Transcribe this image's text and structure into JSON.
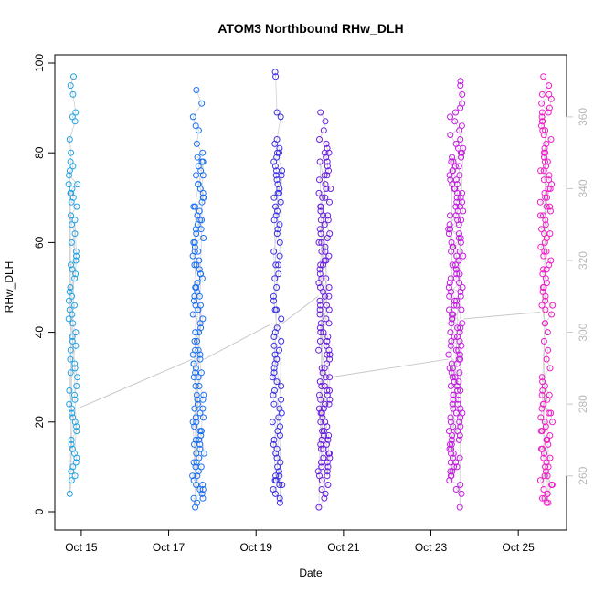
{
  "chart_data": {
    "type": "scatter",
    "title": "ATOM3 Northbound RHw_DLH",
    "xlabel": "Date",
    "ylabel": "RHw_DLH",
    "ylim": [
      0,
      100
    ],
    "xlim": [
      "2014-10-14T12:00",
      "2014-10-26T00:00"
    ],
    "x_ticks": [
      {
        "value": "2014-10-15T00:00",
        "label": "Oct 15"
      },
      {
        "value": "2014-10-17T00:00",
        "label": "Oct 17"
      },
      {
        "value": "2014-10-19T00:00",
        "label": "Oct 19"
      },
      {
        "value": "2014-10-21T00:00",
        "label": "Oct 21"
      },
      {
        "value": "2014-10-23T00:00",
        "label": "Oct 23"
      },
      {
        "value": "2014-10-25T00:00",
        "label": "Oct 25"
      }
    ],
    "y_ticks": [
      0,
      20,
      40,
      60,
      80,
      100
    ],
    "y2_ticks": [
      260,
      280,
      300,
      320,
      340,
      360
    ],
    "y2_range": [
      250,
      375
    ],
    "grid": false,
    "marker": "open-circle",
    "flights": [
      {
        "color": "#1fa3e6",
        "start": "2014-10-14T17:00",
        "end": "2014-10-14T22:00",
        "values": [
          97,
          95,
          93,
          89,
          88,
          87,
          83,
          80,
          78,
          77,
          75,
          73,
          72,
          71,
          70,
          69,
          68,
          66,
          64,
          62,
          60,
          58,
          56,
          55,
          54,
          52,
          50,
          49,
          48,
          46,
          44,
          42,
          40,
          38,
          36,
          34,
          32,
          30,
          28,
          26,
          24,
          23,
          22,
          20,
          18,
          16,
          14,
          12,
          11,
          10,
          8,
          7,
          4,
          65,
          57,
          53,
          47,
          43,
          37,
          31,
          27,
          21,
          15,
          9,
          71,
          73,
          76,
          45,
          39,
          33,
          25,
          19,
          13
        ]
      },
      {
        "color": "#1a6ff0",
        "start": "2014-10-17T13:00",
        "end": "2014-10-17T19:30",
        "values": [
          94,
          91,
          88,
          86,
          85,
          82,
          80,
          79,
          78,
          77,
          76,
          75,
          73,
          72,
          71,
          70,
          69,
          68,
          67,
          66,
          65,
          64,
          63,
          62,
          61,
          60,
          59,
          58,
          57,
          56,
          55,
          54,
          53,
          52,
          51,
          50,
          49,
          48,
          47,
          46,
          45,
          44,
          42,
          40,
          38,
          36,
          35,
          34,
          33,
          32,
          31,
          30,
          28,
          26,
          25,
          24,
          23,
          22,
          21,
          20,
          19,
          18,
          17,
          16,
          15,
          14,
          13,
          12,
          11,
          10,
          9,
          8,
          7,
          6,
          5,
          4,
          3,
          2,
          1,
          75,
          70,
          65,
          60,
          55,
          50,
          45,
          40,
          35,
          30,
          25,
          20,
          15,
          10,
          5,
          3,
          8,
          13,
          18,
          23,
          28,
          33,
          38,
          43,
          48,
          53,
          58,
          63,
          68,
          73,
          78,
          6,
          11,
          16,
          21,
          26,
          31,
          36,
          41,
          46
        ]
      },
      {
        "color": "#3b2fe8",
        "start": "2014-10-19T09:00",
        "end": "2014-10-19T14:30",
        "values": [
          98,
          97,
          89,
          88,
          83,
          82,
          81,
          80,
          79,
          78,
          77,
          76,
          75,
          74,
          73,
          72,
          71,
          70,
          69,
          68,
          66,
          64,
          62,
          60,
          57,
          55,
          53,
          50,
          48,
          45,
          43,
          40,
          38,
          36,
          34,
          32,
          30,
          28,
          26,
          24,
          22,
          20,
          18,
          16,
          14,
          12,
          10,
          8,
          7,
          6,
          5,
          4,
          3,
          2,
          75,
          65,
          55,
          45,
          35,
          25,
          15,
          8,
          6,
          7,
          9,
          11,
          13,
          17,
          19,
          21,
          23,
          27,
          29,
          31,
          33,
          37,
          39,
          41,
          47,
          52,
          58,
          63,
          67,
          71,
          76,
          80
        ]
      },
      {
        "color": "#6a1ee0",
        "start": "2014-10-20T10:00",
        "end": "2014-10-20T17:00",
        "values": [
          89,
          87,
          85,
          83,
          82,
          81,
          80,
          79,
          78,
          77,
          76,
          75,
          74,
          73,
          72,
          71,
          70,
          69,
          68,
          67,
          66,
          65,
          64,
          63,
          62,
          61,
          60,
          59,
          58,
          57,
          56,
          55,
          54,
          53,
          52,
          51,
          50,
          49,
          48,
          47,
          46,
          45,
          44,
          43,
          42,
          41,
          40,
          39,
          38,
          37,
          36,
          35,
          34,
          33,
          32,
          31,
          30,
          29,
          28,
          27,
          26,
          25,
          24,
          23,
          22,
          21,
          20,
          19,
          18,
          17,
          16,
          15,
          14,
          13,
          12,
          11,
          10,
          9,
          8,
          7,
          6,
          5,
          4,
          3,
          1,
          80,
          75,
          70,
          65,
          60,
          55,
          50,
          45,
          40,
          35,
          30,
          25,
          20,
          15,
          10,
          8,
          12,
          14,
          16,
          18,
          22,
          24,
          26,
          28,
          78,
          72,
          68,
          62,
          58,
          52,
          48,
          42,
          38,
          32,
          27,
          23,
          17,
          13,
          9,
          11,
          66,
          56,
          46,
          36
        ]
      },
      {
        "color": "#c41be0",
        "start": "2014-10-23T09:30",
        "end": "2014-10-23T18:00",
        "values": [
          96,
          95,
          93,
          91,
          90,
          89,
          88,
          86,
          84,
          82,
          81,
          80,
          79,
          78,
          77,
          76,
          75,
          74,
          73,
          72,
          71,
          70,
          69,
          68,
          67,
          66,
          65,
          64,
          63,
          62,
          61,
          60,
          59,
          58,
          57,
          56,
          55,
          54,
          53,
          52,
          51,
          50,
          49,
          48,
          47,
          46,
          45,
          44,
          43,
          42,
          41,
          40,
          39,
          38,
          37,
          36,
          35,
          34,
          33,
          32,
          31,
          30,
          29,
          28,
          27,
          26,
          25,
          24,
          23,
          22,
          21,
          20,
          19,
          18,
          17,
          16,
          15,
          14,
          13,
          12,
          11,
          10,
          9,
          8,
          7,
          6,
          5,
          4,
          1,
          80,
          78,
          76,
          74,
          72,
          70,
          68,
          66,
          64,
          62,
          60,
          58,
          56,
          54,
          52,
          50,
          48,
          46,
          44,
          42,
          40,
          38,
          36,
          34,
          32,
          30,
          28,
          26,
          24,
          22,
          20,
          18,
          16,
          14,
          12,
          10,
          8,
          79,
          77,
          75,
          73,
          71,
          69,
          67,
          65,
          63,
          61,
          59,
          57,
          55,
          53,
          51,
          49,
          47,
          45,
          43,
          41,
          39,
          37,
          35,
          33,
          31,
          29,
          27,
          25,
          23,
          21,
          19,
          17,
          15,
          13,
          11,
          9,
          81,
          83,
          85,
          87
        ]
      },
      {
        "color": "#f01cc8",
        "start": "2014-10-25T12:00",
        "end": "2014-10-25T19:00",
        "values": [
          97,
          95,
          93,
          92,
          90,
          89,
          88,
          87,
          86,
          85,
          84,
          83,
          82,
          81,
          80,
          79,
          78,
          77,
          76,
          75,
          74,
          73,
          72,
          71,
          70,
          69,
          68,
          67,
          66,
          65,
          64,
          63,
          62,
          61,
          60,
          59,
          58,
          57,
          56,
          55,
          54,
          53,
          52,
          51,
          50,
          49,
          48,
          47,
          46,
          45,
          44,
          42,
          40,
          38,
          36,
          34,
          32,
          30,
          28,
          26,
          24,
          22,
          20,
          18,
          16,
          14,
          12,
          10,
          8,
          6,
          4,
          3,
          2,
          80,
          78,
          76,
          74,
          72,
          70,
          68,
          66,
          62,
          58,
          54,
          50,
          46,
          42,
          26,
          24,
          22,
          20,
          18,
          16,
          14,
          12,
          10,
          8,
          6,
          4,
          3,
          2,
          15,
          17,
          19,
          21,
          23,
          25,
          27,
          29,
          13,
          11,
          9,
          7,
          5,
          85,
          87,
          89,
          91,
          93
        ]
      }
    ],
    "connectors": [
      {
        "from": "2014-10-14T22:00",
        "to": "2014-10-17T13:00",
        "y_from": 23,
        "y_to": 34
      },
      {
        "from": "2014-10-17T19:30",
        "to": "2014-10-19T09:00",
        "y_from": 34,
        "y_to": 42
      },
      {
        "from": "2014-10-19T14:30",
        "to": "2014-10-20T10:00",
        "y_from": 42,
        "y_to": 48
      },
      {
        "from": "2014-10-20T17:00",
        "to": "2014-10-23T09:30",
        "y_from": 30,
        "y_to": 34
      },
      {
        "from": "2014-10-23T18:00",
        "to": "2014-10-25T12:00",
        "y_from": 43,
        "y_to": 44.5
      }
    ]
  }
}
